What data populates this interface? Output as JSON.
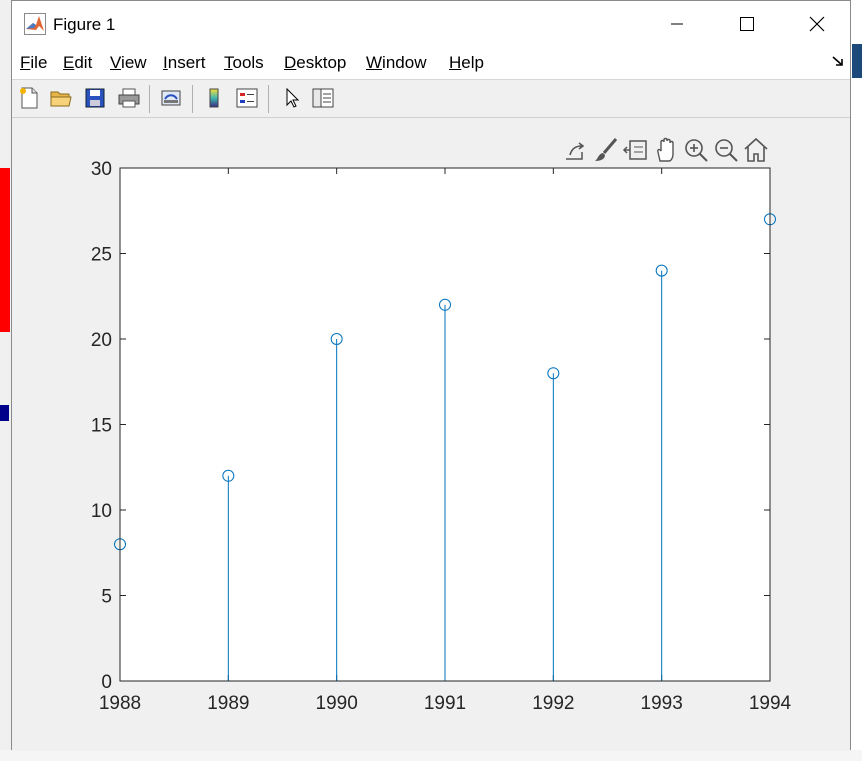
{
  "window": {
    "title": "Figure 1",
    "controls": {
      "minimize": "minimize",
      "maximize": "maximize",
      "close": "close"
    }
  },
  "menu": [
    "File",
    "Edit",
    "View",
    "Insert",
    "Tools",
    "Desktop",
    "Window",
    "Help"
  ],
  "toolbar": {
    "buttons": [
      "new-figure",
      "open-file",
      "save-figure",
      "print-figure",
      "link-plot",
      "insert-colorbar",
      "insert-legend",
      "edit-plot",
      "open-property-inspector"
    ]
  },
  "axes_toolbar": {
    "buttons": [
      "export",
      "brush",
      "data-tips",
      "pan",
      "zoom-in",
      "zoom-out",
      "restore-view"
    ]
  },
  "colors": {
    "stem": "#0072bd",
    "axes_background": "#ffffff",
    "figure_background": "#f0f0f0"
  },
  "chart_data": {
    "type": "scatter",
    "style": "stem",
    "x": [
      1988,
      1989,
      1990,
      1991,
      1992,
      1993,
      1994
    ],
    "y": [
      8,
      12,
      20,
      22,
      18,
      24,
      27
    ],
    "xlim": [
      1988,
      1994
    ],
    "ylim": [
      0,
      30
    ],
    "xticks": [
      "1988",
      "1989",
      "1990",
      "1991",
      "1992",
      "1993",
      "1994"
    ],
    "yticks": [
      "0",
      "5",
      "10",
      "15",
      "20",
      "25",
      "30"
    ],
    "title": "",
    "xlabel": "",
    "ylabel": "",
    "grid": false,
    "marker": "circle"
  }
}
